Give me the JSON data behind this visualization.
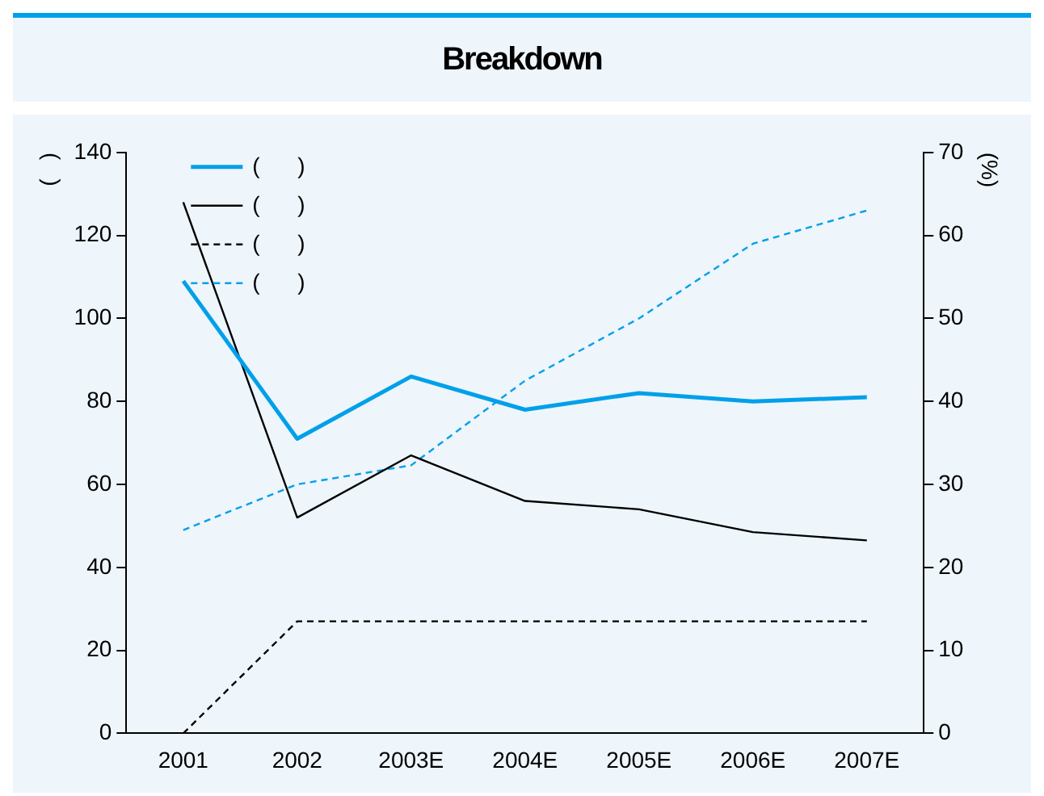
{
  "chart_data": {
    "type": "line",
    "title": "Breakdown",
    "ylabel": "(   )",
    "y2label": "(%)",
    "categories": [
      "2001",
      "2002",
      "2003E",
      "2004E",
      "2005E",
      "2006E",
      "2007E"
    ],
    "series": [
      {
        "name": "(      )",
        "color": "#00a0e9",
        "values": [
          109,
          71,
          86,
          78,
          82,
          80,
          81
        ],
        "line_style": "solid"
      },
      {
        "name": "(      )",
        "color": "#000000",
        "values": [
          128,
          52,
          67,
          56,
          54,
          48.5,
          46.5
        ],
        "line_style": "solid"
      },
      {
        "name": "(      )",
        "color": "#000000",
        "values": [
          0,
          27,
          27,
          27,
          27,
          27,
          27
        ],
        "line_style": "dashed"
      },
      {
        "name": "(      )",
        "color": "#00a0e9",
        "values": [
          24.5,
          30,
          32.3,
          42.5,
          50,
          59,
          63
        ],
        "line_style": "dashed",
        "axis": "y2"
      }
    ],
    "ylim": [
      0,
      140
    ],
    "yticks": [
      0,
      20,
      40,
      60,
      80,
      100,
      120,
      140
    ],
    "y2lim": [
      0,
      70
    ],
    "y2ticks": [
      0,
      10,
      20,
      30,
      40,
      50,
      60,
      70
    ],
    "grid": false,
    "legend": "top left",
    "marker": "none"
  }
}
